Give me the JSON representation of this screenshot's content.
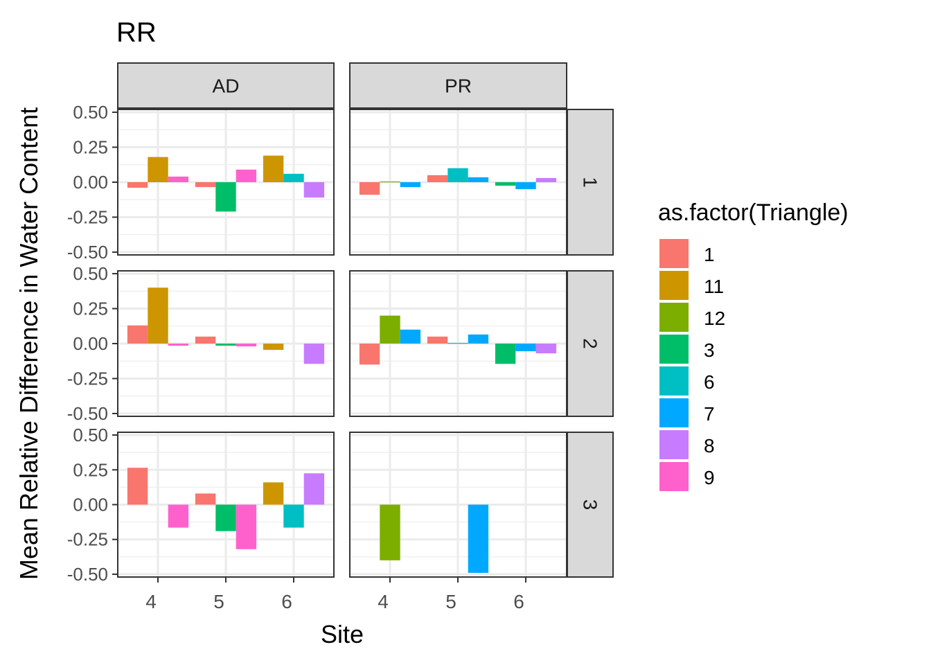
{
  "chart_data": {
    "type": "bar",
    "title": "RR",
    "xlabel": "Site",
    "ylabel": "Mean Relative Difference in Water Content",
    "facet_cols": [
      "AD",
      "PR"
    ],
    "facet_rows": [
      "1",
      "2",
      "3"
    ],
    "x_categories": [
      "4",
      "5",
      "6"
    ],
    "ylim": [
      -0.52,
      0.52
    ],
    "y_ticks": [
      0.5,
      0.25,
      0.0,
      -0.25,
      -0.5
    ],
    "y_tick_labels": [
      "0.50",
      "0.25",
      "0.00",
      "-0.25",
      "-0.50"
    ],
    "grid": true,
    "legend": {
      "title": "as.factor(Triangle)",
      "position": "right",
      "items": [
        {
          "label": "1",
          "color": "#F8766D"
        },
        {
          "label": "11",
          "color": "#CD9600"
        },
        {
          "label": "12",
          "color": "#7CAE00"
        },
        {
          "label": "3",
          "color": "#00BE67"
        },
        {
          "label": "6",
          "color": "#00BFC4"
        },
        {
          "label": "7",
          "color": "#00A9FF"
        },
        {
          "label": "8",
          "color": "#C77CFF"
        },
        {
          "label": "9",
          "color": "#FF61CC"
        }
      ]
    },
    "panels": [
      {
        "col": "AD",
        "row": "1",
        "bars": [
          {
            "site": "4",
            "triangle": "1",
            "value": -0.04,
            "offset": -1
          },
          {
            "site": "4",
            "triangle": "11",
            "value": 0.18,
            "offset": 0
          },
          {
            "site": "4",
            "triangle": "9",
            "value": 0.04,
            "offset": 1
          },
          {
            "site": "5",
            "triangle": "1",
            "value": -0.035,
            "offset": -1
          },
          {
            "site": "5",
            "triangle": "3",
            "value": -0.21,
            "offset": 0
          },
          {
            "site": "5",
            "triangle": "9",
            "value": 0.09,
            "offset": 1
          },
          {
            "site": "6",
            "triangle": "11",
            "value": 0.19,
            "offset": -1
          },
          {
            "site": "6",
            "triangle": "6",
            "value": 0.06,
            "offset": 0
          },
          {
            "site": "6",
            "triangle": "8",
            "value": -0.11,
            "offset": 1
          }
        ]
      },
      {
        "col": "PR",
        "row": "1",
        "bars": [
          {
            "site": "4",
            "triangle": "1",
            "value": -0.09,
            "offset": -1
          },
          {
            "site": "4",
            "triangle": "12",
            "value": 0.005,
            "offset": 0
          },
          {
            "site": "4",
            "triangle": "7",
            "value": -0.035,
            "offset": 1
          },
          {
            "site": "5",
            "triangle": "1",
            "value": 0.05,
            "offset": -1
          },
          {
            "site": "5",
            "triangle": "6",
            "value": 0.1,
            "offset": 0
          },
          {
            "site": "5",
            "triangle": "7",
            "value": 0.035,
            "offset": 1
          },
          {
            "site": "6",
            "triangle": "3",
            "value": -0.025,
            "offset": -1
          },
          {
            "site": "6",
            "triangle": "7",
            "value": -0.05,
            "offset": 0
          },
          {
            "site": "6",
            "triangle": "8",
            "value": 0.03,
            "offset": 1
          }
        ]
      },
      {
        "col": "AD",
        "row": "2",
        "bars": [
          {
            "site": "4",
            "triangle": "1",
            "value": 0.13,
            "offset": -1
          },
          {
            "site": "4",
            "triangle": "11",
            "value": 0.4,
            "offset": 0
          },
          {
            "site": "4",
            "triangle": "9",
            "value": -0.015,
            "offset": 1
          },
          {
            "site": "5",
            "triangle": "1",
            "value": 0.05,
            "offset": -1
          },
          {
            "site": "5",
            "triangle": "3",
            "value": -0.015,
            "offset": 0
          },
          {
            "site": "5",
            "triangle": "9",
            "value": -0.02,
            "offset": 1
          },
          {
            "site": "6",
            "triangle": "11",
            "value": -0.045,
            "offset": -1
          },
          {
            "site": "6",
            "triangle": "8",
            "value": -0.145,
            "offset": 1
          }
        ]
      },
      {
        "col": "PR",
        "row": "2",
        "bars": [
          {
            "site": "4",
            "triangle": "1",
            "value": -0.15,
            "offset": -1
          },
          {
            "site": "4",
            "triangle": "12",
            "value": 0.2,
            "offset": 0
          },
          {
            "site": "4",
            "triangle": "7",
            "value": 0.1,
            "offset": 1
          },
          {
            "site": "5",
            "triangle": "1",
            "value": 0.05,
            "offset": -1
          },
          {
            "site": "5",
            "triangle": "6",
            "value": 0.005,
            "offset": 0
          },
          {
            "site": "5",
            "triangle": "7",
            "value": 0.065,
            "offset": 1
          },
          {
            "site": "6",
            "triangle": "3",
            "value": -0.145,
            "offset": -1
          },
          {
            "site": "6",
            "triangle": "7",
            "value": -0.055,
            "offset": 0
          },
          {
            "site": "6",
            "triangle": "8",
            "value": -0.07,
            "offset": 1
          }
        ]
      },
      {
        "col": "AD",
        "row": "3",
        "bars": [
          {
            "site": "4",
            "triangle": "1",
            "value": 0.265,
            "offset": -1
          },
          {
            "site": "4",
            "triangle": "9",
            "value": -0.165,
            "offset": 1
          },
          {
            "site": "5",
            "triangle": "1",
            "value": 0.08,
            "offset": -1
          },
          {
            "site": "5",
            "triangle": "3",
            "value": -0.19,
            "offset": 0
          },
          {
            "site": "5",
            "triangle": "9",
            "value": -0.32,
            "offset": 1
          },
          {
            "site": "6",
            "triangle": "11",
            "value": 0.16,
            "offset": -1
          },
          {
            "site": "6",
            "triangle": "6",
            "value": -0.165,
            "offset": 0
          },
          {
            "site": "6",
            "triangle": "8",
            "value": 0.225,
            "offset": 1
          }
        ]
      },
      {
        "col": "PR",
        "row": "3",
        "bars": [
          {
            "site": "4",
            "triangle": "12",
            "value": -0.4,
            "offset": 0
          },
          {
            "site": "5",
            "triangle": "7",
            "value": -0.49,
            "offset": 1
          }
        ]
      }
    ]
  }
}
